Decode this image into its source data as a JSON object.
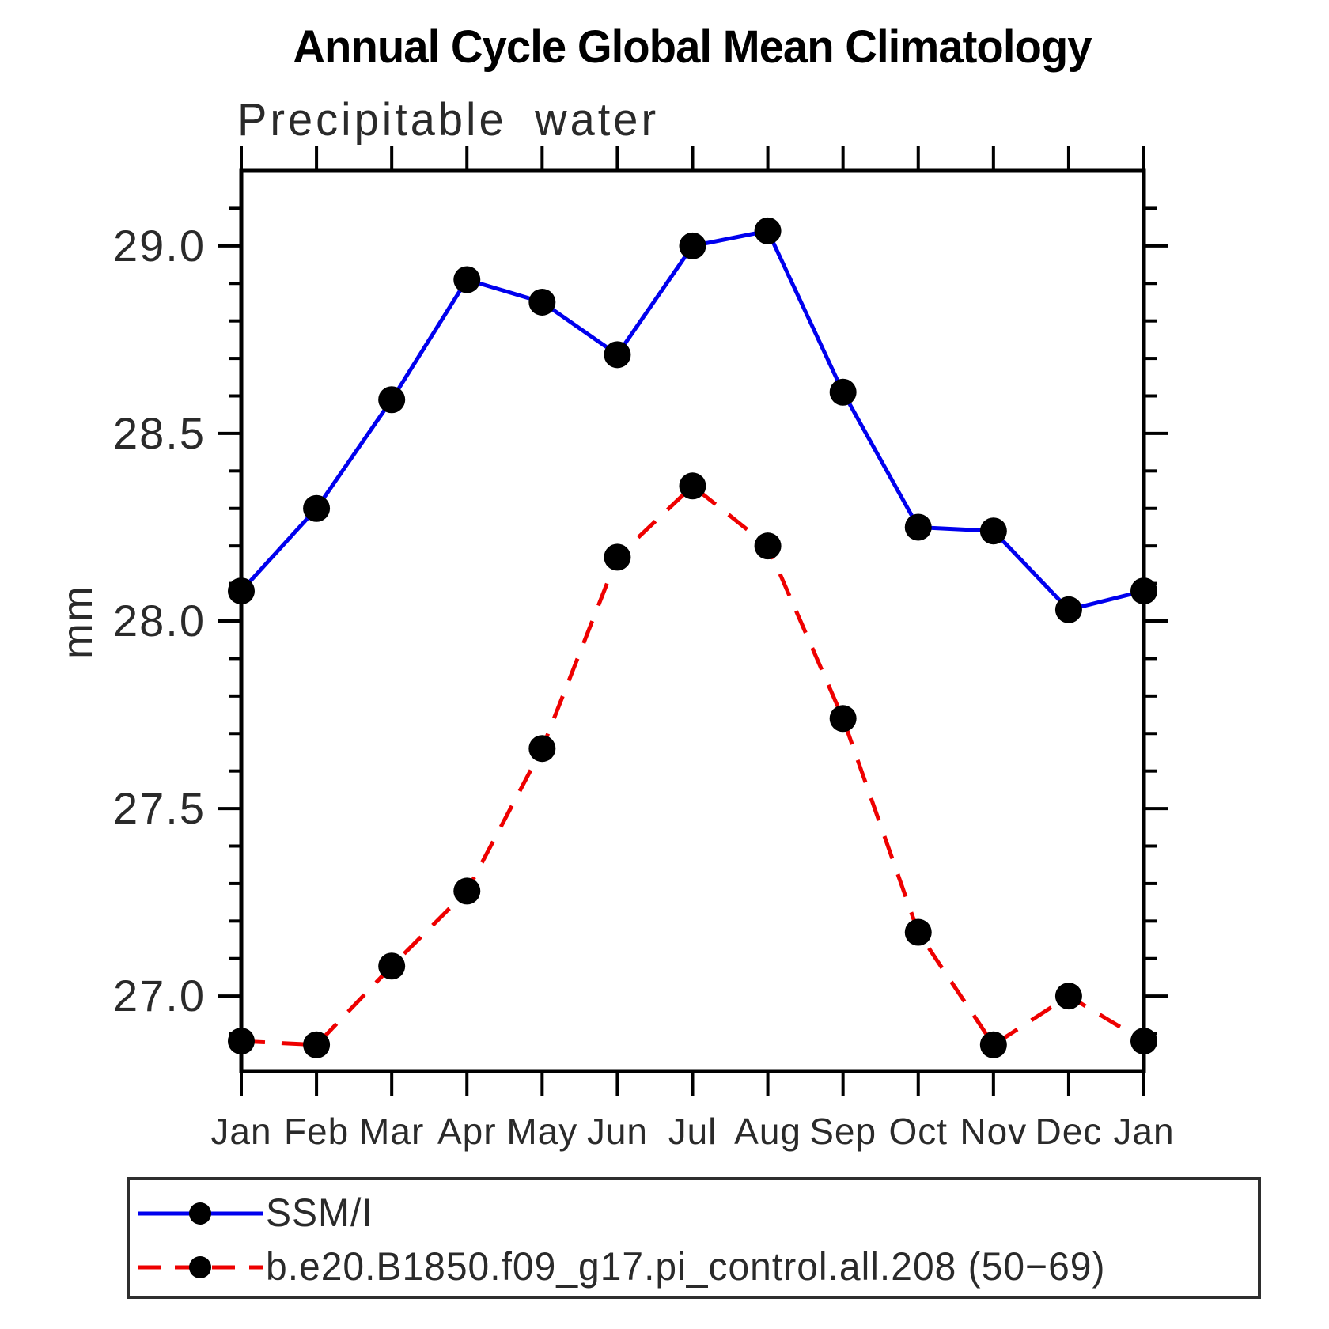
{
  "title": "Annual Cycle Global Mean Climatology",
  "subtitle": "Precipitable water",
  "ylabel": "mm",
  "colors": {
    "ssmi_line": "#0000ee",
    "model_line": "#ee0000",
    "marker": "#000000",
    "axis": "#000000",
    "text": "#2a2a2a",
    "legend_border": "#2e2e2e"
  },
  "chart_data": {
    "type": "line",
    "x_categories": [
      "Jan",
      "Feb",
      "Mar",
      "Apr",
      "May",
      "Jun",
      "Jul",
      "Aug",
      "Sep",
      "Oct",
      "Nov",
      "Dec",
      "Jan"
    ],
    "title": "Annual Cycle Global Mean Climatology",
    "subtitle": "Precipitable water",
    "xlabel": "",
    "ylabel": "mm",
    "ylim": [
      26.8,
      29.2
    ],
    "y_major_ticks": [
      27.0,
      27.5,
      28.0,
      28.5,
      29.0
    ],
    "y_major_tick_labels": [
      "27.0",
      "27.5",
      "28.0",
      "28.5",
      "29.0"
    ],
    "y_minor_step": 0.1,
    "grid": false,
    "legend_position": "bottom-left-box",
    "series": [
      {
        "name": "SSM/I",
        "color": "#0000ee",
        "line_style": "solid",
        "marker": "filled-circle",
        "marker_color": "#000000",
        "values": [
          28.08,
          28.3,
          28.59,
          28.91,
          28.85,
          28.71,
          29.0,
          29.04,
          28.61,
          28.25,
          28.24,
          28.03,
          28.08
        ]
      },
      {
        "name": "b.e20.B1850.f09_g17.pi_control.all.208 (50−69)",
        "color": "#ee0000",
        "line_style": "dashed",
        "marker": "filled-circle",
        "marker_color": "#000000",
        "values": [
          26.88,
          26.87,
          27.08,
          27.28,
          27.66,
          28.17,
          28.36,
          28.2,
          27.74,
          27.17,
          26.87,
          27.0,
          26.88
        ]
      }
    ]
  }
}
